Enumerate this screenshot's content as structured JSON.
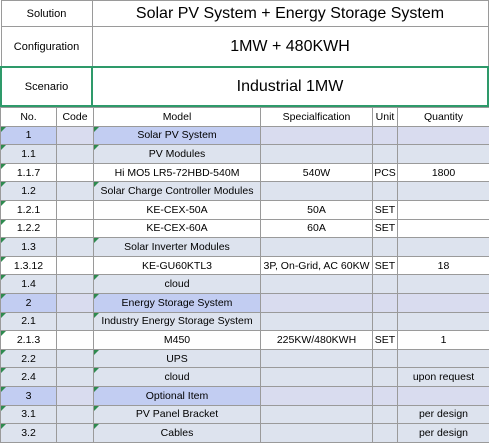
{
  "header": {
    "solution_label": "Solution",
    "solution_value": "Solar PV System + Energy Storage System",
    "configuration_label": "Configuration",
    "configuration_value": "1MW + 480KWH",
    "scenario_label": "Scenario",
    "scenario_value": "Industrial 1MW"
  },
  "table": {
    "columns": [
      "No.",
      "Code",
      "Model",
      "Specialfication",
      "Unit",
      "Quantity"
    ],
    "rows": [
      {
        "no": "1",
        "code": "",
        "model": "Solar PV System",
        "spec": "",
        "unit": "",
        "qty": "",
        "type": "sec"
      },
      {
        "no": "1.1",
        "code": "",
        "model": "PV Modules",
        "spec": "",
        "unit": "",
        "qty": "",
        "type": "sub"
      },
      {
        "no": "1.1.7",
        "code": "",
        "model": "Hi MO5 LR5-72HBD-540M",
        "spec": "540W",
        "unit": "PCS",
        "qty": "1800",
        "type": "item"
      },
      {
        "no": "1.2",
        "code": "",
        "model": "Solar Charge Controller Modules",
        "spec": "",
        "unit": "",
        "qty": "",
        "type": "sub"
      },
      {
        "no": "1.2.1",
        "code": "",
        "model": "KE-CEX-50A",
        "spec": "50A",
        "unit": "SET",
        "qty": "",
        "type": "item"
      },
      {
        "no": "1.2.2",
        "code": "",
        "model": "KE-CEX-60A",
        "spec": "60A",
        "unit": "SET",
        "qty": "",
        "type": "item"
      },
      {
        "no": "1.3",
        "code": "",
        "model": "Solar Inverter Modules",
        "spec": "",
        "unit": "",
        "qty": "",
        "type": "sub"
      },
      {
        "no": "1.3.12",
        "code": "",
        "model": "KE-GU60KTL3",
        "spec": "3P, On-Grid, AC 60KW",
        "unit": "SET",
        "qty": "18",
        "type": "item"
      },
      {
        "no": "1.4",
        "code": "",
        "model": "cloud",
        "spec": "",
        "unit": "",
        "qty": "",
        "type": "sub"
      },
      {
        "no": "2",
        "code": "",
        "model": "Energy Storage System",
        "spec": "",
        "unit": "",
        "qty": "",
        "type": "sec"
      },
      {
        "no": "2.1",
        "code": "",
        "model": "Industry Energy Storage System",
        "spec": "",
        "unit": "",
        "qty": "",
        "type": "sub"
      },
      {
        "no": "2.1.3",
        "code": "",
        "model": "M450",
        "spec": "225KW/480KWH",
        "unit": "SET",
        "qty": "1",
        "type": "item"
      },
      {
        "no": "2.2",
        "code": "",
        "model": "UPS",
        "spec": "",
        "unit": "",
        "qty": "",
        "type": "sub"
      },
      {
        "no": "2.4",
        "code": "",
        "model": "cloud",
        "spec": "",
        "unit": "",
        "qty": "upon request",
        "type": "sub"
      },
      {
        "no": "3",
        "code": "",
        "model": "Optional Item",
        "spec": "",
        "unit": "",
        "qty": "",
        "type": "sec"
      },
      {
        "no": "3.1",
        "code": "",
        "model": "PV Panel Bracket",
        "spec": "",
        "unit": "",
        "qty": "per design",
        "type": "sub"
      },
      {
        "no": "3.2",
        "code": "",
        "model": "Cables",
        "spec": "",
        "unit": "",
        "qty": "per design",
        "type": "sub"
      }
    ]
  },
  "colors": {
    "section_row": "#c2cdf2",
    "sub_row": "#dde3ee",
    "scenario_border": "#2e9a6a",
    "cell_marker": "#2e8a4f"
  }
}
